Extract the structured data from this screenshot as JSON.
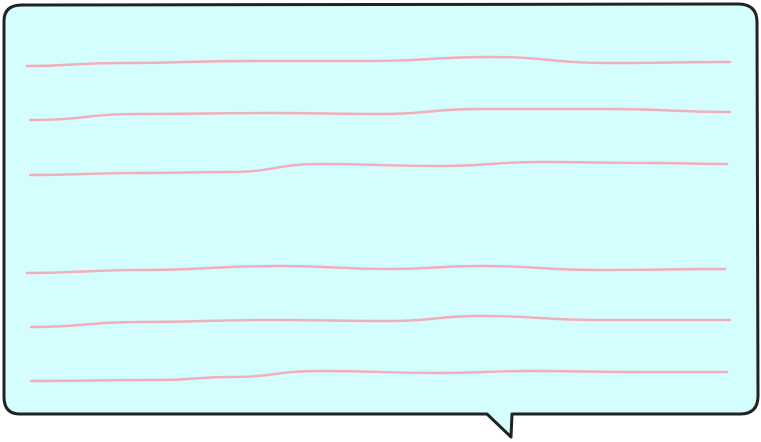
{
  "speech_bubble": {
    "fill_color": "#d4fdfd",
    "outline_color": "#222222",
    "line_color": "#f2aebd",
    "ruled_line_count": 6
  }
}
